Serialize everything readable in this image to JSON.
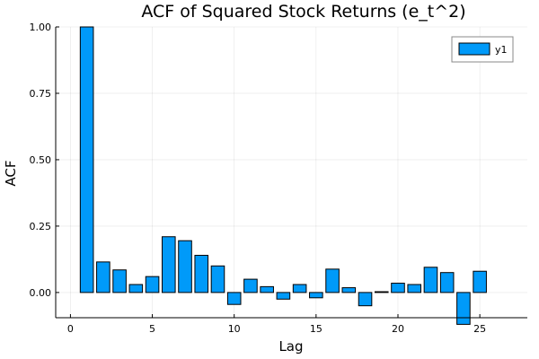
{
  "chart_data": {
    "type": "bar",
    "title": "ACF of Squared Stock Returns (e_t^2)",
    "xlabel": "Lag",
    "ylabel": "ACF",
    "xlim": [
      -0.9,
      27.9
    ],
    "ylim": [
      -0.095,
      1.0
    ],
    "x_ticks": [
      0,
      5,
      10,
      15,
      20,
      25
    ],
    "y_ticks": [
      0.0,
      0.25,
      0.5,
      0.75,
      1.0
    ],
    "x_tick_labels": [
      "0",
      "5",
      "10",
      "15",
      "20",
      "25"
    ],
    "y_tick_labels": [
      "0.00",
      "0.25",
      "0.50",
      "0.75",
      "1.00"
    ],
    "grid": true,
    "legend_position": "top-right",
    "bar_color": "#009AF9",
    "series": [
      {
        "name": "y1",
        "x": [
          1,
          2,
          3,
          4,
          5,
          6,
          7,
          8,
          9,
          10,
          11,
          12,
          13,
          14,
          15,
          16,
          17,
          18,
          19,
          20,
          21,
          22,
          23,
          24,
          25
        ],
        "values": [
          1.0,
          0.115,
          0.085,
          0.03,
          0.06,
          0.21,
          0.195,
          0.14,
          0.1,
          -0.045,
          0.05,
          0.022,
          -0.025,
          0.03,
          -0.02,
          0.088,
          0.018,
          -0.05,
          0.003,
          0.035,
          0.03,
          0.095,
          0.075,
          -0.12,
          0.08
        ]
      }
    ]
  }
}
